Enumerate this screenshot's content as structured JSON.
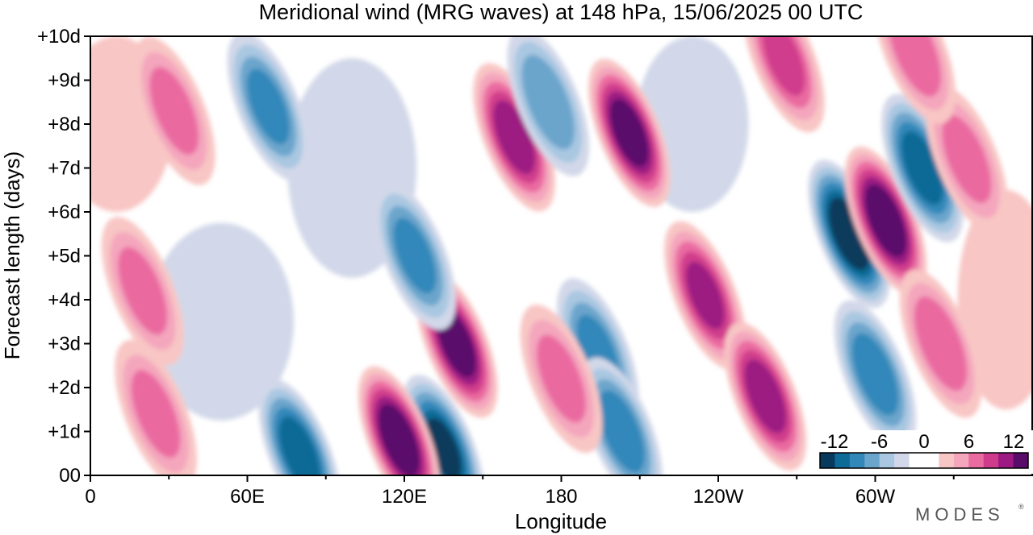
{
  "chart_data": {
    "type": "heatmap",
    "title": "Meridional wind (MRG waves) at  148 hPa,  15/06/2025  00 UTC",
    "xlabel": "Longitude",
    "ylabel": "Forecast length (days)",
    "x_ticks": [
      "0",
      "60E",
      "120E",
      "180",
      "120W",
      "60W"
    ],
    "y_ticks": [
      "00",
      "+1d",
      "+2d",
      "+3d",
      "+4d",
      "+5d",
      "+6d",
      "+7d",
      "+8d",
      "+9d",
      "+10d"
    ],
    "colorbar_ticks": [
      "-12",
      "-6",
      "0",
      "6",
      "12"
    ],
    "colors": [
      "#073a5c",
      "#0e6a96",
      "#3388ba",
      "#6ca5cc",
      "#a9c7e1",
      "#d2d8e9",
      "#ffffff",
      "#ffffff",
      "#f8c6c4",
      "#f4a6bd",
      "#ea6ba0",
      "#d03c8c",
      "#9c1a82",
      "#5a0c6a"
    ],
    "features": [
      {
        "lon": 80,
        "day": 0.5,
        "v": -11
      },
      {
        "lon": 135,
        "day": 0.6,
        "v": -12
      },
      {
        "lon": 118,
        "day": 0.8,
        "v": 14
      },
      {
        "lon": 140,
        "day": 3.0,
        "v": 13
      },
      {
        "lon": 162,
        "day": 7.7,
        "v": 11
      },
      {
        "lon": 206,
        "day": 7.8,
        "v": 13
      },
      {
        "lon": 235,
        "day": 4.1,
        "v": 10
      },
      {
        "lon": 258,
        "day": 1.8,
        "v": 11
      },
      {
        "lon": 290,
        "day": 5.5,
        "v": -14
      },
      {
        "lon": 304,
        "day": 5.8,
        "v": 14
      },
      {
        "lon": 318,
        "day": 7.0,
        "v": -11
      },
      {
        "lon": 300,
        "day": 2.3,
        "v": -9
      },
      {
        "lon": 68,
        "day": 8.4,
        "v": -8
      },
      {
        "lon": 194,
        "day": 2.8,
        "v": -8
      },
      {
        "lon": 203,
        "day": 1.0,
        "v": -9
      },
      {
        "lon": 124,
        "day": 5.0,
        "v": -8
      },
      {
        "lon": 175,
        "day": 8.5,
        "v": -7
      },
      {
        "lon": 180,
        "day": 2.2,
        "v": 6
      },
      {
        "lon": 335,
        "day": 7.2,
        "v": 6
      },
      {
        "lon": 325,
        "day": 3.0,
        "v": 7
      },
      {
        "lon": 20,
        "day": 4.2,
        "v": 6
      },
      {
        "lon": 25,
        "day": 1.4,
        "v": 6
      },
      {
        "lon": 32,
        "day": 8.3,
        "v": 6
      },
      {
        "lon": 265,
        "day": 9.5,
        "v": 8
      },
      {
        "lon": 315,
        "day": 9.7,
        "v": 7
      }
    ]
  },
  "logo_text": "MODES"
}
